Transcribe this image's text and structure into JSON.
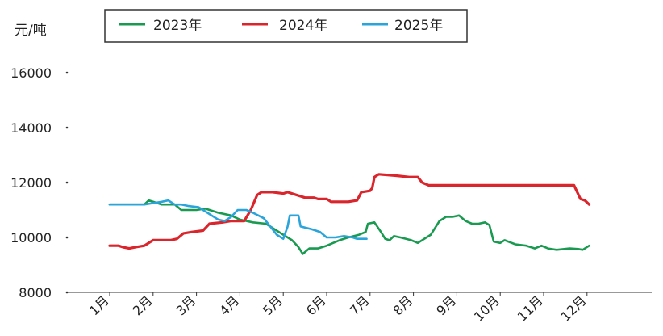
{
  "chart_data": {
    "type": "line",
    "ylabel": "元/吨",
    "ylim": [
      8000,
      16000
    ],
    "yticks": [
      8000,
      10000,
      12000,
      14000,
      16000
    ],
    "ytick_labels": [
      "8000",
      "10000",
      "12000",
      "14000",
      "16000"
    ],
    "xticks": [
      1,
      2,
      3,
      4,
      5,
      6,
      7,
      8,
      9,
      10,
      11,
      12
    ],
    "xtick_labels": [
      "1月",
      "2月",
      "3月",
      "4月",
      "5月",
      "6月",
      "7月",
      "8月",
      "9月",
      "10月",
      "11月",
      "12月"
    ],
    "xlim": [
      0.9,
      12.15
    ],
    "legend_position": "top",
    "grid": false,
    "series": [
      {
        "name": "2023年",
        "color": "#1a9a50",
        "points": [
          [
            1.0,
            11200
          ],
          [
            1.5,
            11200
          ],
          [
            1.8,
            11200
          ],
          [
            1.9,
            11350
          ],
          [
            2.0,
            11300
          ],
          [
            2.2,
            11200
          ],
          [
            2.5,
            11200
          ],
          [
            2.65,
            11000
          ],
          [
            2.8,
            11000
          ],
          [
            3.0,
            11000
          ],
          [
            3.2,
            11050
          ],
          [
            3.5,
            10900
          ],
          [
            3.8,
            10800
          ],
          [
            4.0,
            10650
          ],
          [
            4.3,
            10550
          ],
          [
            4.6,
            10500
          ],
          [
            4.8,
            10300
          ],
          [
            5.0,
            10100
          ],
          [
            5.2,
            9900
          ],
          [
            5.35,
            9650
          ],
          [
            5.45,
            9400
          ],
          [
            5.6,
            9600
          ],
          [
            5.8,
            9600
          ],
          [
            6.0,
            9700
          ],
          [
            6.3,
            9900
          ],
          [
            6.5,
            10000
          ],
          [
            6.75,
            10100
          ],
          [
            6.9,
            10200
          ],
          [
            6.95,
            10500
          ],
          [
            7.1,
            10550
          ],
          [
            7.25,
            10200
          ],
          [
            7.35,
            9950
          ],
          [
            7.45,
            9900
          ],
          [
            7.55,
            10050
          ],
          [
            7.7,
            10000
          ],
          [
            7.95,
            9900
          ],
          [
            8.1,
            9800
          ],
          [
            8.4,
            10100
          ],
          [
            8.6,
            10600
          ],
          [
            8.75,
            10750
          ],
          [
            8.9,
            10750
          ],
          [
            9.05,
            10800
          ],
          [
            9.2,
            10600
          ],
          [
            9.35,
            10500
          ],
          [
            9.5,
            10500
          ],
          [
            9.65,
            10550
          ],
          [
            9.75,
            10450
          ],
          [
            9.85,
            9850
          ],
          [
            10.0,
            9800
          ],
          [
            10.1,
            9900
          ],
          [
            10.35,
            9750
          ],
          [
            10.6,
            9700
          ],
          [
            10.8,
            9600
          ],
          [
            10.95,
            9700
          ],
          [
            11.1,
            9600
          ],
          [
            11.3,
            9550
          ],
          [
            11.6,
            9600
          ],
          [
            11.8,
            9580
          ],
          [
            11.9,
            9550
          ],
          [
            12.05,
            9700
          ]
        ]
      },
      {
        "name": "2024年",
        "color": "#d9252b",
        "points": [
          [
            1.0,
            9700
          ],
          [
            1.2,
            9700
          ],
          [
            1.3,
            9650
          ],
          [
            1.45,
            9600
          ],
          [
            1.6,
            9650
          ],
          [
            1.8,
            9700
          ],
          [
            2.0,
            9900
          ],
          [
            2.15,
            9900
          ],
          [
            2.4,
            9900
          ],
          [
            2.55,
            9950
          ],
          [
            2.7,
            10150
          ],
          [
            2.9,
            10200
          ],
          [
            3.15,
            10250
          ],
          [
            3.3,
            10500
          ],
          [
            3.6,
            10550
          ],
          [
            3.8,
            10600
          ],
          [
            4.1,
            10600
          ],
          [
            4.25,
            11000
          ],
          [
            4.4,
            11550
          ],
          [
            4.5,
            11650
          ],
          [
            4.75,
            11650
          ],
          [
            5.0,
            11600
          ],
          [
            5.1,
            11650
          ],
          [
            5.3,
            11550
          ],
          [
            5.5,
            11450
          ],
          [
            5.7,
            11450
          ],
          [
            5.8,
            11400
          ],
          [
            6.0,
            11400
          ],
          [
            6.1,
            11300
          ],
          [
            6.3,
            11300
          ],
          [
            6.5,
            11300
          ],
          [
            6.7,
            11350
          ],
          [
            6.8,
            11650
          ],
          [
            7.0,
            11700
          ],
          [
            7.05,
            11800
          ],
          [
            7.1,
            12200
          ],
          [
            7.2,
            12300
          ],
          [
            7.6,
            12250
          ],
          [
            7.9,
            12200
          ],
          [
            8.1,
            12200
          ],
          [
            8.2,
            12000
          ],
          [
            8.35,
            11900
          ],
          [
            9.0,
            11900
          ],
          [
            10.0,
            11900
          ],
          [
            11.0,
            11900
          ],
          [
            11.7,
            11900
          ],
          [
            11.85,
            11400
          ],
          [
            11.95,
            11350
          ],
          [
            12.05,
            11200
          ]
        ]
      },
      {
        "name": "2025年",
        "color": "#2aa4da",
        "points": [
          [
            1.0,
            11200
          ],
          [
            1.2,
            11200
          ],
          [
            1.5,
            11200
          ],
          [
            1.8,
            11200
          ],
          [
            2.0,
            11250
          ],
          [
            2.2,
            11300
          ],
          [
            2.35,
            11350
          ],
          [
            2.5,
            11200
          ],
          [
            2.65,
            11200
          ],
          [
            2.8,
            11150
          ],
          [
            3.05,
            11100
          ],
          [
            3.2,
            10950
          ],
          [
            3.35,
            10800
          ],
          [
            3.5,
            10650
          ],
          [
            3.65,
            10600
          ],
          [
            3.8,
            10750
          ],
          [
            3.95,
            11000
          ],
          [
            4.15,
            11000
          ],
          [
            4.3,
            10900
          ],
          [
            4.55,
            10700
          ],
          [
            4.7,
            10400
          ],
          [
            4.85,
            10100
          ],
          [
            5.0,
            9950
          ],
          [
            5.1,
            10400
          ],
          [
            5.15,
            10800
          ],
          [
            5.35,
            10800
          ],
          [
            5.4,
            10400
          ],
          [
            5.65,
            10300
          ],
          [
            5.85,
            10200
          ],
          [
            6.0,
            10000
          ],
          [
            6.2,
            10000
          ],
          [
            6.4,
            10050
          ],
          [
            6.6,
            10000
          ],
          [
            6.7,
            9950
          ],
          [
            6.8,
            9950
          ],
          [
            6.92,
            9950
          ]
        ]
      }
    ]
  }
}
